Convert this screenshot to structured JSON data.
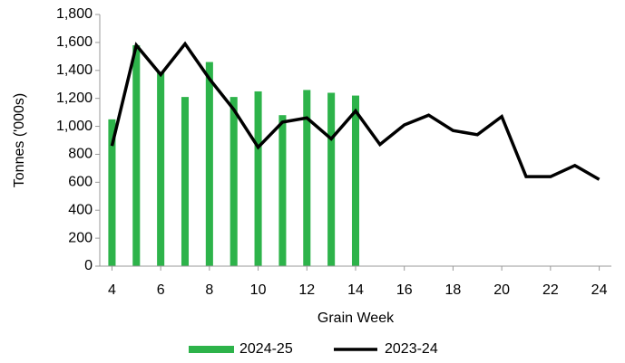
{
  "chart_data": {
    "type": "combo",
    "x_label": "Grain Week",
    "y_label": "Tonnes  ('000s)",
    "x": [
      4,
      5,
      6,
      7,
      8,
      9,
      10,
      11,
      12,
      13,
      14,
      15,
      16,
      17,
      18,
      19,
      20,
      21,
      22,
      23,
      24
    ],
    "series": [
      {
        "name": "2024-25",
        "type": "bar",
        "color": "#2db34a",
        "values": [
          1050,
          1580,
          1390,
          1210,
          1460,
          1210,
          1250,
          1080,
          1260,
          1240,
          1220,
          null,
          null,
          null,
          null,
          null,
          null,
          null,
          null,
          null,
          null
        ]
      },
      {
        "name": "2023-24",
        "type": "line",
        "color": "#000000",
        "values": [
          860,
          1580,
          1370,
          1590,
          1340,
          1120,
          850,
          1030,
          1060,
          910,
          1110,
          870,
          1010,
          1080,
          970,
          940,
          1070,
          640,
          640,
          720,
          620
        ]
      }
    ],
    "xlim": [
      3.5,
      24.5
    ],
    "xticks": [
      4,
      6,
      8,
      10,
      12,
      14,
      16,
      18,
      20,
      22,
      24
    ],
    "ylim": [
      0,
      1800
    ],
    "yticks": [
      0,
      200,
      400,
      600,
      800,
      {
        "value": 1000,
        "label": "1,000"
      },
      {
        "value": 1200,
        "label": "1,200"
      },
      {
        "value": 1400,
        "label": "1,400"
      },
      {
        "value": 1600,
        "label": "1,600"
      },
      {
        "value": 1800,
        "label": "1,800"
      }
    ],
    "grid": false,
    "legend": "bottom"
  }
}
